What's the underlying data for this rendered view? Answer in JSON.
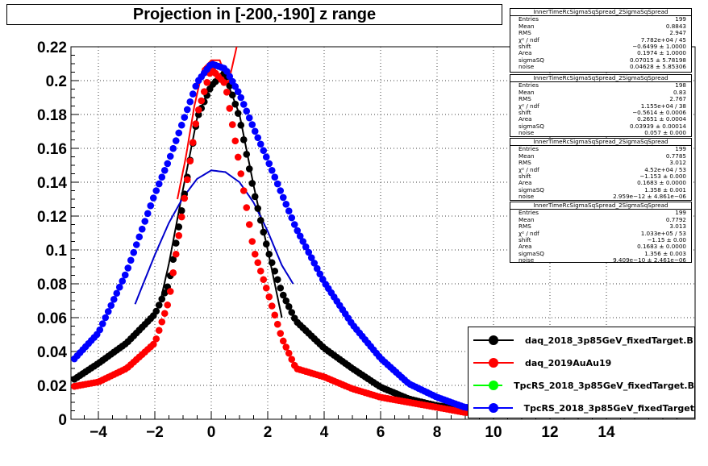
{
  "chart_data": {
    "type": "scatter",
    "title": "Projection in [-200,-190] z range",
    "xlabel": "",
    "ylabel": "",
    "xlim": [
      -5,
      16.5
    ],
    "ylim": [
      0,
      0.22
    ],
    "grid": true,
    "x_ticks": [
      "−4",
      "−2",
      "0",
      "2",
      "4",
      "6",
      "8",
      "10",
      "12",
      "14"
    ],
    "x_tick_values": [
      -4,
      -2,
      0,
      2,
      4,
      6,
      8,
      10,
      12,
      14
    ],
    "y_ticks": [
      "0",
      "0.02",
      "0.04",
      "0.06",
      "0.08",
      "0.1",
      "0.12",
      "0.14",
      "0.16",
      "0.18",
      "0.2",
      "0.22"
    ],
    "y_tick_values": [
      0,
      0.02,
      0.04,
      0.06,
      0.08,
      0.1,
      0.12,
      0.14,
      0.16,
      0.18,
      0.2,
      0.22
    ],
    "series": [
      {
        "name": "daq_2018_3p85GeV_fixedTarget.B",
        "color": "#000000",
        "x": [
          -5,
          -4,
          -3,
          -2,
          -1.5,
          -1,
          -0.5,
          0,
          0.5,
          1,
          1.5,
          2,
          2.5,
          3,
          4,
          5,
          6,
          7,
          8,
          9
        ],
        "y": [
          0.022,
          0.033,
          0.045,
          0.062,
          0.08,
          0.128,
          0.178,
          0.197,
          0.205,
          0.178,
          0.135,
          0.1,
          0.075,
          0.058,
          0.042,
          0.03,
          0.019,
          0.012,
          0.008,
          0.006
        ]
      },
      {
        "name": "daq_2019AuAu19",
        "color": "#ff0000",
        "x": [
          -5,
          -4,
          -3,
          -2,
          -1.5,
          -1,
          -0.5,
          0,
          0.5,
          1,
          1.5,
          2,
          2.5,
          3,
          4,
          5,
          6,
          7,
          8,
          9
        ],
        "y": [
          0.019,
          0.022,
          0.03,
          0.045,
          0.07,
          0.125,
          0.18,
          0.207,
          0.198,
          0.15,
          0.1,
          0.075,
          0.048,
          0.03,
          0.025,
          0.018,
          0.013,
          0.01,
          0.007,
          0.004
        ]
      },
      {
        "name": "TpcRS_2018_3p85GeV_fixedTarget.B",
        "color": "#00ff00",
        "x": [],
        "y": []
      },
      {
        "name": "TpcRS_2018_3p85GeV_fixedTarget",
        "color": "#0000ff",
        "x": [
          -5,
          -4,
          -3,
          -2,
          -1.5,
          -1,
          -0.5,
          0,
          0.5,
          1,
          1.5,
          2,
          2.5,
          3,
          4,
          5,
          6,
          7,
          8,
          9
        ],
        "y": [
          0.033,
          0.051,
          0.087,
          0.133,
          0.153,
          0.176,
          0.199,
          0.21,
          0.207,
          0.192,
          0.172,
          0.153,
          0.133,
          0.113,
          0.081,
          0.056,
          0.036,
          0.021,
          0.013,
          0.007
        ]
      }
    ],
    "fits": [
      {
        "color": "#000000",
        "x": [
          -1.8,
          -1.5,
          -1,
          -0.5,
          0,
          0.5,
          1,
          1.5,
          2,
          2.5
        ],
        "y": [
          0.07,
          0.092,
          0.136,
          0.178,
          0.199,
          0.202,
          0.18,
          0.138,
          0.1,
          0.06
        ]
      },
      {
        "color": "#ff0000",
        "x": [
          -1.2,
          -0.9,
          -0.6,
          -0.3,
          0,
          0.3,
          0.6,
          0.9
        ],
        "y": [
          0.13,
          0.155,
          0.185,
          0.207,
          0.212,
          0.212,
          0.198,
          0.22
        ]
      },
      {
        "color": "#0000cc",
        "x": [
          -2.7,
          -2,
          -1.5,
          -1,
          -0.5,
          0,
          0.5,
          1,
          1.5,
          2,
          2.5,
          2.9
        ],
        "y": [
          0.068,
          0.097,
          0.116,
          0.131,
          0.142,
          0.147,
          0.146,
          0.14,
          0.128,
          0.111,
          0.091,
          0.08
        ]
      }
    ],
    "legend_position": "bottom-right"
  },
  "stats_boxes": [
    {
      "name": "InnerTimeRcSigmaSqSpread_2SigmaSqSpread",
      "rows": [
        [
          "Entries",
          "199"
        ],
        [
          "Mean",
          "0.8843"
        ],
        [
          "RMS",
          "2.947"
        ],
        [
          "χ² / ndf",
          "7.782e+04 / 45"
        ],
        [
          "shift",
          "−0.6499 ± 1.0000"
        ],
        [
          "Area",
          "0.1974 ± 1.0000"
        ],
        [
          "sigmaSQ",
          "0.07015 ± 5.78198"
        ],
        [
          "noise",
          "0.04628 ± 5.85306"
        ]
      ]
    },
    {
      "name": "InnerTimeRcSigmaSqSpread_2SigmaSqSpread",
      "rows": [
        [
          "Entries",
          "198"
        ],
        [
          "Mean",
          "0.83"
        ],
        [
          "RMS",
          "2.767"
        ],
        [
          "χ² / ndf",
          "1.155e+04 / 38"
        ],
        [
          "shift",
          "−0.5614 ± 0.0006"
        ],
        [
          "Area",
          "0.2651 ± 0.0004"
        ],
        [
          "sigmaSQ",
          "0.03939 ± 0.00014"
        ],
        [
          "noise",
          "0.057 ± 0.000"
        ]
      ]
    },
    {
      "name": "InnerTimeRcSigmaSqSpread_2SigmaSqSpread",
      "rows": [
        [
          "Entries",
          "199"
        ],
        [
          "Mean",
          "0.7785"
        ],
        [
          "RMS",
          "3.012"
        ],
        [
          "χ² / ndf",
          "4.52e+04 / 53"
        ],
        [
          "shift",
          "−1.153 ± 0.000"
        ],
        [
          "Area",
          "0.1683 ± 0.0000"
        ],
        [
          "sigmaSQ",
          "1.358 ± 0.001"
        ],
        [
          "noise",
          "2.959e−12 ± 4.861e−06"
        ]
      ]
    },
    {
      "name": "InnerTimeRcSigmaSqSpread_2SigmaSqSpread",
      "rows": [
        [
          "Entries",
          "199"
        ],
        [
          "Mean",
          "0.7792"
        ],
        [
          "RMS",
          "3.013"
        ],
        [
          "χ² / ndf",
          "1.033e+05 / 53"
        ],
        [
          "shift",
          "−1.15 ± 0.00"
        ],
        [
          "Area",
          "0.1683 ± 0.0000"
        ],
        [
          "sigmaSQ",
          "1.356 ± 0.003"
        ],
        [
          "noise",
          "9.409e−10 ± 2.461e−06"
        ]
      ]
    }
  ]
}
